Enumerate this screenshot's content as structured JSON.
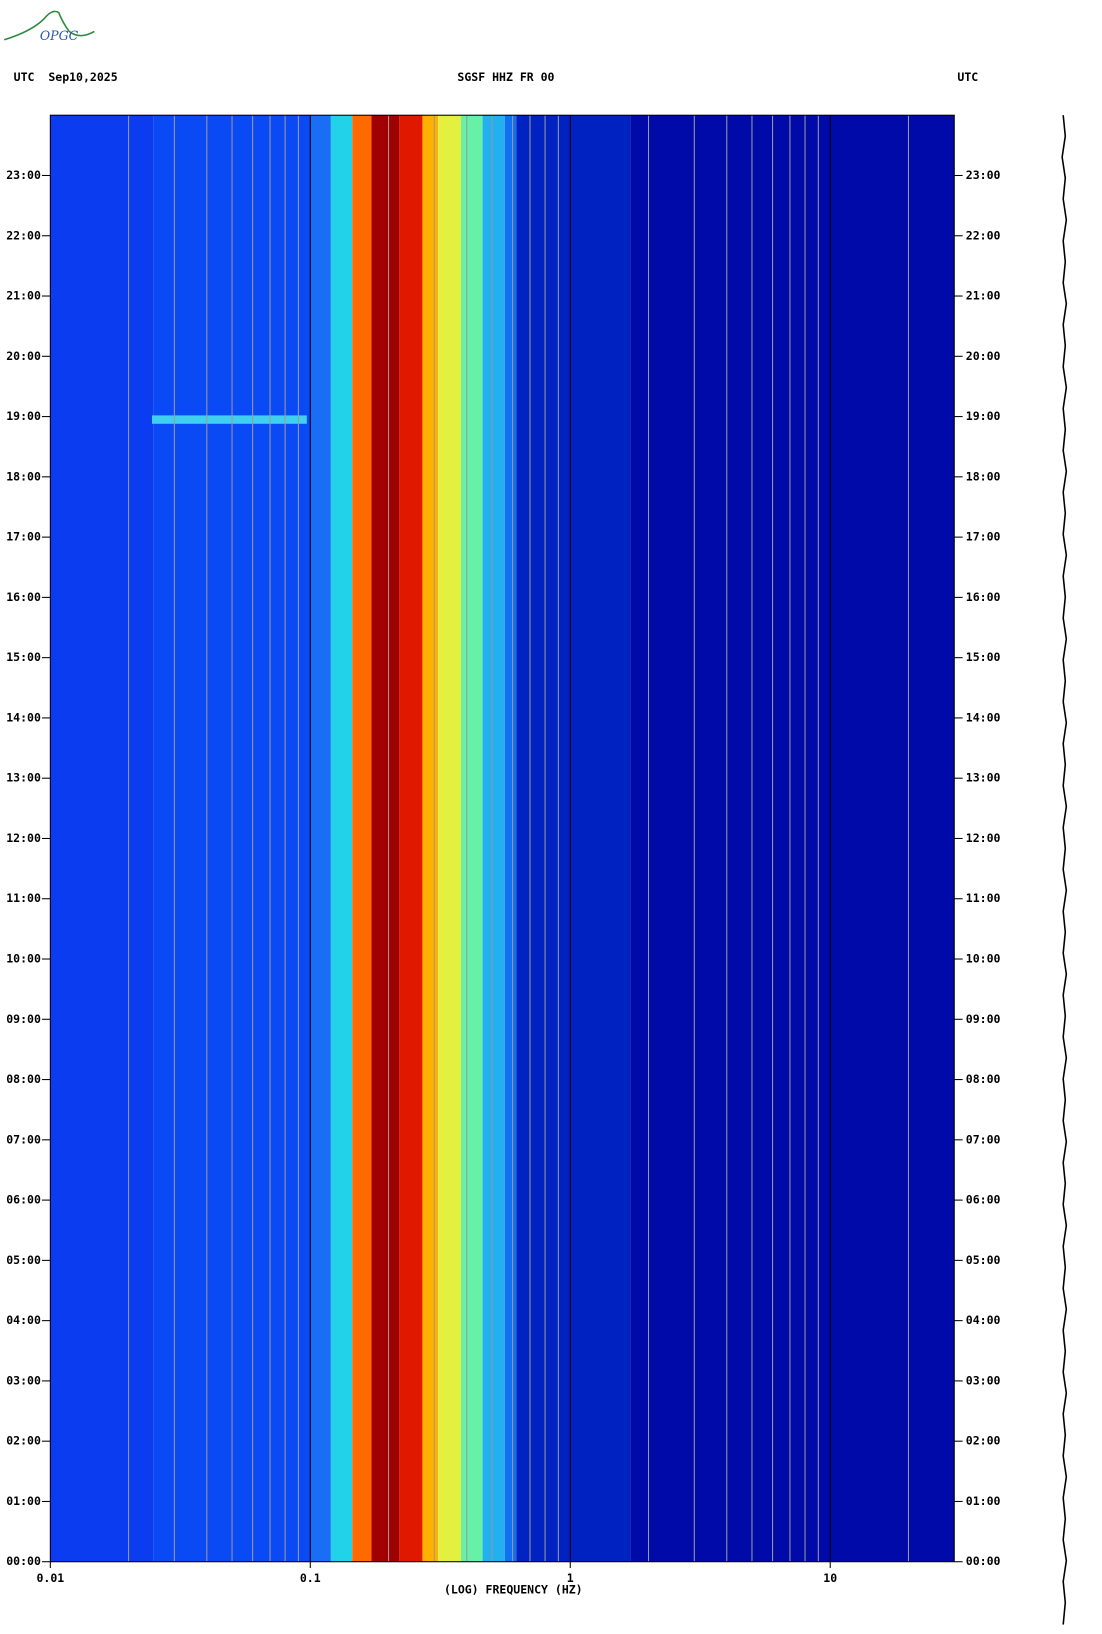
{
  "chart_data": {
    "type": "spectrogram",
    "logo": "OPGC",
    "title_left": "UTC  Sep10,2025",
    "title": "SGSF HHZ FR 00",
    "title_right": "UTC",
    "xlabel": "(LOG) FREQUENCY (HZ)",
    "xscale": "log",
    "xlim": [
      0.01,
      30
    ],
    "xticks": [
      0.01,
      0.1,
      1,
      10
    ],
    "xgrid": [
      0.02,
      0.03,
      0.04,
      0.05,
      0.06,
      0.07,
      0.08,
      0.09,
      0.1,
      0.2,
      0.3,
      0.4,
      0.5,
      0.6,
      0.7,
      0.8,
      0.9,
      1,
      2,
      3,
      4,
      5,
      6,
      7,
      8,
      9,
      10,
      20
    ],
    "ylim": [
      0,
      24
    ],
    "yticks": [
      {
        "value": 0,
        "label": "00:00"
      },
      {
        "value": 1,
        "label": "01:00"
      },
      {
        "value": 2,
        "label": "02:00"
      },
      {
        "value": 3,
        "label": "03:00"
      },
      {
        "value": 4,
        "label": "04:00"
      },
      {
        "value": 5,
        "label": "05:00"
      },
      {
        "value": 6,
        "label": "06:00"
      },
      {
        "value": 7,
        "label": "07:00"
      },
      {
        "value": 8,
        "label": "08:00"
      },
      {
        "value": 9,
        "label": "09:00"
      },
      {
        "value": 10,
        "label": "10:00"
      },
      {
        "value": 11,
        "label": "11:00"
      },
      {
        "value": 12,
        "label": "12:00"
      },
      {
        "value": 13,
        "label": "13:00"
      },
      {
        "value": 14,
        "label": "14:00"
      },
      {
        "value": 15,
        "label": "15:00"
      },
      {
        "value": 16,
        "label": "16:00"
      },
      {
        "value": 17,
        "label": "17:00"
      },
      {
        "value": 18,
        "label": "18:00"
      },
      {
        "value": 19,
        "label": "19:00"
      },
      {
        "value": 20,
        "label": "20:00"
      },
      {
        "value": 21,
        "label": "21:00"
      },
      {
        "value": 22,
        "label": "22:00"
      },
      {
        "value": 23,
        "label": "23:00"
      }
    ],
    "bands": {
      "edges": [
        0.01,
        0.025,
        0.1,
        0.12,
        0.145,
        0.172,
        0.22,
        0.27,
        0.31,
        0.38,
        0.46,
        0.56,
        0.62,
        1.7,
        30
      ],
      "colors": [
        "#0b3cf0",
        "#0a4af5",
        "#1a6ef5",
        "#22d2e8",
        "#ff6a00",
        "#a00000",
        "#e01800",
        "#ffb000",
        "#e4f040",
        "#66f0a8",
        "#22b0f0",
        "#1070f0",
        "#0022c0",
        "#000aa8"
      ]
    },
    "events": [
      {
        "time": 18.95,
        "f_start": 0.0246,
        "f_end": 0.097,
        "color": "#3fd0f0"
      }
    ]
  }
}
